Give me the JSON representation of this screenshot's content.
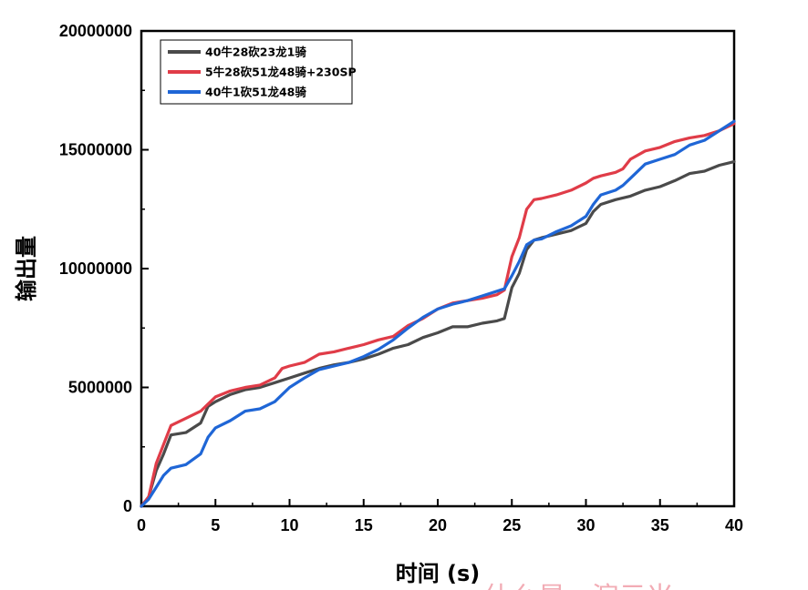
{
  "chart_data": {
    "type": "line",
    "xlabel": "时间 (s)",
    "ylabel": "输出量",
    "xlim": [
      0,
      40
    ],
    "ylim": [
      0,
      20000000
    ],
    "xticks": [
      "0",
      "5",
      "10",
      "15",
      "20",
      "25",
      "30",
      "35",
      "40"
    ],
    "yticks": [
      "0",
      "5000000",
      "10000000",
      "15000000",
      "20000000"
    ],
    "grid": false,
    "legend_position": "top-left",
    "series": [
      {
        "name": "40牛28砍23龙1骑",
        "color": "#4a4a4a",
        "points": [
          [
            0,
            0
          ],
          [
            0.5,
            400000
          ],
          [
            1,
            1500000
          ],
          [
            1.5,
            2200000
          ],
          [
            2,
            3000000
          ],
          [
            3,
            3100000
          ],
          [
            4,
            3500000
          ],
          [
            4.5,
            4200000
          ],
          [
            5,
            4400000
          ],
          [
            6,
            4700000
          ],
          [
            7,
            4900000
          ],
          [
            8,
            5000000
          ],
          [
            9,
            5200000
          ],
          [
            10,
            5400000
          ],
          [
            11,
            5600000
          ],
          [
            12,
            5800000
          ],
          [
            13,
            5950000
          ],
          [
            14,
            6050000
          ],
          [
            15,
            6200000
          ],
          [
            16,
            6400000
          ],
          [
            17,
            6650000
          ],
          [
            18,
            6800000
          ],
          [
            19,
            7100000
          ],
          [
            20,
            7300000
          ],
          [
            21,
            7550000
          ],
          [
            22,
            7550000
          ],
          [
            23,
            7700000
          ],
          [
            24,
            7800000
          ],
          [
            24.5,
            7900000
          ],
          [
            25,
            9200000
          ],
          [
            25.5,
            9800000
          ],
          [
            26,
            10800000
          ],
          [
            26.5,
            11200000
          ],
          [
            27,
            11300000
          ],
          [
            28,
            11450000
          ],
          [
            29,
            11600000
          ],
          [
            30,
            11900000
          ],
          [
            30.5,
            12400000
          ],
          [
            31,
            12700000
          ],
          [
            32,
            12900000
          ],
          [
            33,
            13050000
          ],
          [
            34,
            13300000
          ],
          [
            35,
            13450000
          ],
          [
            36,
            13700000
          ],
          [
            37,
            14000000
          ],
          [
            38,
            14100000
          ],
          [
            39,
            14350000
          ],
          [
            40,
            14500000
          ]
        ]
      },
      {
        "name": "5牛28砍51龙48骑+230SP",
        "color": "#e03c48",
        "points": [
          [
            0,
            0
          ],
          [
            0.5,
            400000
          ],
          [
            1,
            1800000
          ],
          [
            1.5,
            2600000
          ],
          [
            2,
            3400000
          ],
          [
            3,
            3700000
          ],
          [
            4,
            4000000
          ],
          [
            4.5,
            4300000
          ],
          [
            5,
            4600000
          ],
          [
            6,
            4850000
          ],
          [
            7,
            5000000
          ],
          [
            8,
            5100000
          ],
          [
            9,
            5400000
          ],
          [
            9.5,
            5800000
          ],
          [
            10,
            5900000
          ],
          [
            11,
            6050000
          ],
          [
            12,
            6400000
          ],
          [
            13,
            6500000
          ],
          [
            14,
            6650000
          ],
          [
            15,
            6800000
          ],
          [
            16,
            7000000
          ],
          [
            17,
            7150000
          ],
          [
            18,
            7600000
          ],
          [
            19,
            7900000
          ],
          [
            20,
            8300000
          ],
          [
            21,
            8550000
          ],
          [
            22,
            8650000
          ],
          [
            23,
            8750000
          ],
          [
            24,
            8900000
          ],
          [
            24.5,
            9100000
          ],
          [
            25,
            10500000
          ],
          [
            25.5,
            11300000
          ],
          [
            26,
            12500000
          ],
          [
            26.5,
            12900000
          ],
          [
            27,
            12950000
          ],
          [
            28,
            13100000
          ],
          [
            29,
            13300000
          ],
          [
            30,
            13600000
          ],
          [
            30.5,
            13800000
          ],
          [
            31,
            13900000
          ],
          [
            32,
            14050000
          ],
          [
            32.5,
            14200000
          ],
          [
            33,
            14600000
          ],
          [
            34,
            14950000
          ],
          [
            35,
            15100000
          ],
          [
            36,
            15350000
          ],
          [
            37,
            15500000
          ],
          [
            38,
            15600000
          ],
          [
            39,
            15800000
          ],
          [
            40,
            16100000
          ]
        ]
      },
      {
        "name": "40牛1砍51龙48骑",
        "color": "#1f66d6",
        "points": [
          [
            0,
            0
          ],
          [
            0.5,
            300000
          ],
          [
            1,
            800000
          ],
          [
            1.5,
            1300000
          ],
          [
            2,
            1600000
          ],
          [
            3,
            1750000
          ],
          [
            4,
            2200000
          ],
          [
            4.5,
            2900000
          ],
          [
            5,
            3300000
          ],
          [
            6,
            3600000
          ],
          [
            7,
            4000000
          ],
          [
            8,
            4100000
          ],
          [
            9,
            4400000
          ],
          [
            9.5,
            4700000
          ],
          [
            10,
            5000000
          ],
          [
            11,
            5400000
          ],
          [
            12,
            5750000
          ],
          [
            13,
            5900000
          ],
          [
            14,
            6050000
          ],
          [
            15,
            6300000
          ],
          [
            16,
            6600000
          ],
          [
            17,
            7000000
          ],
          [
            18,
            7500000
          ],
          [
            19,
            7950000
          ],
          [
            20,
            8300000
          ],
          [
            21,
            8500000
          ],
          [
            22,
            8650000
          ],
          [
            23,
            8850000
          ],
          [
            24,
            9050000
          ],
          [
            24.5,
            9150000
          ],
          [
            25,
            9700000
          ],
          [
            25.5,
            10300000
          ],
          [
            26,
            11000000
          ],
          [
            26.5,
            11200000
          ],
          [
            27,
            11250000
          ],
          [
            28,
            11550000
          ],
          [
            29,
            11800000
          ],
          [
            30,
            12200000
          ],
          [
            30.5,
            12700000
          ],
          [
            31,
            13100000
          ],
          [
            32,
            13300000
          ],
          [
            32.5,
            13500000
          ],
          [
            33,
            13800000
          ],
          [
            34,
            14400000
          ],
          [
            35,
            14600000
          ],
          [
            36,
            14800000
          ],
          [
            37,
            15200000
          ],
          [
            38,
            15400000
          ],
          [
            39,
            15800000
          ],
          [
            40,
            16200000
          ]
        ]
      }
    ]
  },
  "watermark": "什么是 · 演示米"
}
